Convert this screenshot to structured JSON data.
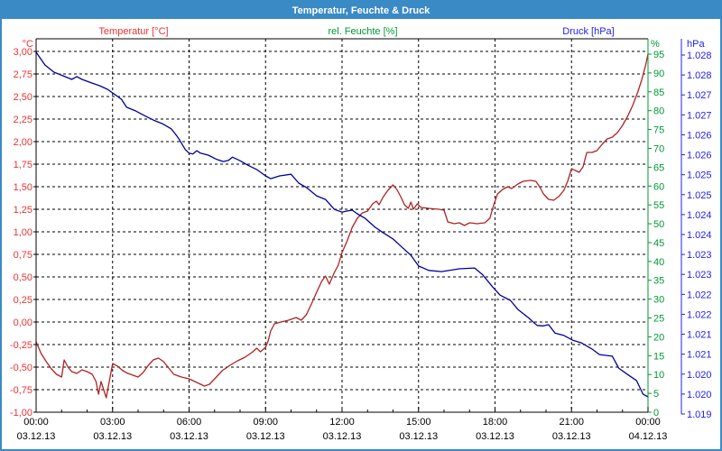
{
  "window": {
    "title": "Temperatur, Feuchte & Druck"
  },
  "colors": {
    "titlebar": "#3a8ac6",
    "frame": "#3a8ac6",
    "plot_background": "#ffffff",
    "grid": "#000000",
    "x_labels": "#000000",
    "temperature_label": "#ee3333",
    "temperature_curve": "#b22222",
    "humidity_label": "#009933",
    "humidity_axis": "#009933",
    "pressure_label": "#2222ee",
    "pressure_curve": "#000099"
  },
  "chart_data": {
    "type": "line",
    "title": "Temperatur, Feuchte & Druck",
    "grid": "dashed black, horizontal every 0.25 °C, vertical every 3 h",
    "legend_position": "axis titles above plot",
    "x_axis": {
      "range_hours": [
        0,
        24
      ],
      "major_step_hours": 3,
      "minor_step_hours": 1,
      "tick_times": [
        "00:00",
        "03:00",
        "06:00",
        "09:00",
        "12:00",
        "15:00",
        "18:00",
        "21:00",
        "00:00"
      ],
      "tick_dates": [
        "03.12.13",
        "03.12.13",
        "03.12.13",
        "03.12.13",
        "03.12.13",
        "03.12.13",
        "03.12.13",
        "03.12.13",
        "04.12.13"
      ]
    },
    "axes": {
      "temperature": {
        "label": "Temperatur [°C]",
        "unit": "°C",
        "side": "left",
        "min": -1.0,
        "max": 3.0,
        "step": 0.25,
        "tick_labels": [
          "3,00",
          "2,75",
          "2,50",
          "2,25",
          "2,00",
          "1,75",
          "1,50",
          "1,25",
          "1,00",
          "0,75",
          "0,50",
          "0,25",
          "0,00",
          "-0,25",
          "-0,50",
          "-0,75",
          "-1,00"
        ]
      },
      "humidity": {
        "label": "rel. Feuchte [%]",
        "unit": "%",
        "side": "right",
        "min": 0,
        "max": 95,
        "step": 5,
        "tick_labels": [
          "95",
          "90",
          "85",
          "80",
          "75",
          "70",
          "65",
          "60",
          "55",
          "50",
          "45",
          "40",
          "35",
          "30",
          "25",
          "20",
          "15",
          "10",
          "5",
          "0"
        ]
      },
      "pressure": {
        "label": "Druck [hPa]",
        "unit": "hPa",
        "side": "right-outer",
        "min": 1019.5,
        "max": 1028.5,
        "step": 0.5,
        "tick_labels": [
          "1.028",
          "1.028",
          "1.027",
          "1.027",
          "1.026",
          "1.026",
          "1.025",
          "1.025",
          "1.024",
          "1.024",
          "1.023",
          "1.023",
          "1.022",
          "1.022",
          "1.021",
          "1.021",
          "1.020",
          "1.020",
          "1.019"
        ]
      }
    },
    "series": [
      {
        "name": "Temperatur",
        "axis": "temperature",
        "color": "#b22222",
        "points": [
          [
            0,
            -0.22
          ],
          [
            0.2,
            -0.35
          ],
          [
            0.4,
            -0.44
          ],
          [
            0.6,
            -0.52
          ],
          [
            0.8,
            -0.58
          ],
          [
            1.0,
            -0.61
          ],
          [
            1.1,
            -0.42
          ],
          [
            1.25,
            -0.5
          ],
          [
            1.4,
            -0.55
          ],
          [
            1.6,
            -0.57
          ],
          [
            1.8,
            -0.53
          ],
          [
            2.0,
            -0.55
          ],
          [
            2.2,
            -0.58
          ],
          [
            2.35,
            -0.66
          ],
          [
            2.45,
            -0.8
          ],
          [
            2.55,
            -0.66
          ],
          [
            2.75,
            -0.84
          ],
          [
            3.0,
            -0.46
          ],
          [
            3.2,
            -0.49
          ],
          [
            3.4,
            -0.54
          ],
          [
            3.6,
            -0.57
          ],
          [
            3.8,
            -0.59
          ],
          [
            4.0,
            -0.61
          ],
          [
            4.2,
            -0.56
          ],
          [
            4.4,
            -0.48
          ],
          [
            4.6,
            -0.42
          ],
          [
            4.8,
            -0.4
          ],
          [
            5.0,
            -0.44
          ],
          [
            5.2,
            -0.51
          ],
          [
            5.4,
            -0.58
          ],
          [
            5.7,
            -0.61
          ],
          [
            6.0,
            -0.63
          ],
          [
            6.3,
            -0.67
          ],
          [
            6.6,
            -0.71
          ],
          [
            6.8,
            -0.69
          ],
          [
            7.0,
            -0.63
          ],
          [
            7.3,
            -0.54
          ],
          [
            7.6,
            -0.48
          ],
          [
            7.9,
            -0.43
          ],
          [
            8.2,
            -0.39
          ],
          [
            8.5,
            -0.33
          ],
          [
            8.65,
            -0.29
          ],
          [
            8.8,
            -0.33
          ],
          [
            9.0,
            -0.28
          ],
          [
            9.1,
            -0.21
          ],
          [
            9.2,
            -0.1
          ],
          [
            9.35,
            -0.02
          ],
          [
            9.6,
            0.0
          ],
          [
            9.9,
            0.02
          ],
          [
            10.2,
            0.05
          ],
          [
            10.4,
            0.02
          ],
          [
            10.6,
            0.08
          ],
          [
            10.8,
            0.2
          ],
          [
            11.0,
            0.33
          ],
          [
            11.2,
            0.45
          ],
          [
            11.35,
            0.51
          ],
          [
            11.5,
            0.42
          ],
          [
            11.7,
            0.55
          ],
          [
            11.85,
            0.63
          ],
          [
            12.0,
            0.77
          ],
          [
            12.2,
            0.9
          ],
          [
            12.4,
            1.05
          ],
          [
            12.6,
            1.15
          ],
          [
            12.8,
            1.21
          ],
          [
            13.0,
            1.23
          ],
          [
            13.2,
            1.31
          ],
          [
            13.35,
            1.34
          ],
          [
            13.45,
            1.3
          ],
          [
            13.6,
            1.38
          ],
          [
            13.8,
            1.46
          ],
          [
            14.0,
            1.52
          ],
          [
            14.15,
            1.47
          ],
          [
            14.3,
            1.39
          ],
          [
            14.45,
            1.3
          ],
          [
            14.6,
            1.26
          ],
          [
            14.7,
            1.33
          ],
          [
            14.8,
            1.25
          ],
          [
            14.95,
            1.31
          ],
          [
            15.1,
            1.27
          ],
          [
            15.4,
            1.26
          ],
          [
            15.8,
            1.25
          ],
          [
            16.0,
            1.24
          ],
          [
            16.15,
            1.11
          ],
          [
            16.4,
            1.09
          ],
          [
            16.6,
            1.1
          ],
          [
            16.8,
            1.07
          ],
          [
            17.0,
            1.1
          ],
          [
            17.3,
            1.09
          ],
          [
            17.6,
            1.1
          ],
          [
            17.8,
            1.15
          ],
          [
            17.95,
            1.3
          ],
          [
            18.1,
            1.42
          ],
          [
            18.3,
            1.47
          ],
          [
            18.5,
            1.5
          ],
          [
            18.65,
            1.48
          ],
          [
            18.9,
            1.53
          ],
          [
            19.1,
            1.56
          ],
          [
            19.4,
            1.57
          ],
          [
            19.6,
            1.56
          ],
          [
            19.75,
            1.5
          ],
          [
            19.9,
            1.42
          ],
          [
            20.1,
            1.36
          ],
          [
            20.3,
            1.35
          ],
          [
            20.5,
            1.39
          ],
          [
            20.7,
            1.46
          ],
          [
            20.85,
            1.56
          ],
          [
            21.0,
            1.7
          ],
          [
            21.15,
            1.68
          ],
          [
            21.3,
            1.66
          ],
          [
            21.45,
            1.72
          ],
          [
            21.6,
            1.88
          ],
          [
            21.8,
            1.88
          ],
          [
            22.0,
            1.9
          ],
          [
            22.2,
            1.97
          ],
          [
            22.4,
            2.03
          ],
          [
            22.6,
            2.05
          ],
          [
            22.8,
            2.1
          ],
          [
            23.0,
            2.18
          ],
          [
            23.2,
            2.28
          ],
          [
            23.4,
            2.4
          ],
          [
            23.6,
            2.55
          ],
          [
            23.75,
            2.68
          ],
          [
            23.9,
            2.84
          ],
          [
            24.0,
            2.97
          ]
        ]
      },
      {
        "name": "rel. Feuchte",
        "axis": "humidity",
        "color": "#009933",
        "points": []
      },
      {
        "name": "Druck",
        "axis": "pressure",
        "color": "#000099",
        "points": [
          [
            0,
            1028.57
          ],
          [
            0.35,
            1028.25
          ],
          [
            0.7,
            1028.07
          ],
          [
            1.05,
            1027.98
          ],
          [
            1.4,
            1027.89
          ],
          [
            1.6,
            1027.96
          ],
          [
            1.8,
            1027.89
          ],
          [
            2.1,
            1027.82
          ],
          [
            2.5,
            1027.73
          ],
          [
            2.8,
            1027.64
          ],
          [
            3.2,
            1027.46
          ],
          [
            3.35,
            1027.39
          ],
          [
            3.55,
            1027.19
          ],
          [
            3.9,
            1027.1
          ],
          [
            4.25,
            1026.98
          ],
          [
            4.6,
            1026.87
          ],
          [
            4.95,
            1026.78
          ],
          [
            5.3,
            1026.65
          ],
          [
            5.45,
            1026.53
          ],
          [
            5.6,
            1026.4
          ],
          [
            5.85,
            1026.13
          ],
          [
            6.0,
            1026.04
          ],
          [
            6.15,
            1026.02
          ],
          [
            6.3,
            1026.1
          ],
          [
            6.45,
            1026.04
          ],
          [
            6.75,
            1025.99
          ],
          [
            7.1,
            1025.88
          ],
          [
            7.35,
            1025.83
          ],
          [
            7.55,
            1025.86
          ],
          [
            7.7,
            1025.94
          ],
          [
            8.0,
            1025.85
          ],
          [
            8.3,
            1025.74
          ],
          [
            8.65,
            1025.63
          ],
          [
            9.0,
            1025.47
          ],
          [
            9.2,
            1025.4
          ],
          [
            9.55,
            1025.47
          ],
          [
            10.0,
            1025.51
          ],
          [
            10.3,
            1025.29
          ],
          [
            10.6,
            1025.18
          ],
          [
            11.0,
            1024.97
          ],
          [
            11.35,
            1024.88
          ],
          [
            11.7,
            1024.63
          ],
          [
            12.0,
            1024.56
          ],
          [
            12.2,
            1024.59
          ],
          [
            12.4,
            1024.61
          ],
          [
            12.6,
            1024.52
          ],
          [
            12.9,
            1024.41
          ],
          [
            13.3,
            1024.18
          ],
          [
            13.6,
            1024.05
          ],
          [
            14.0,
            1023.89
          ],
          [
            14.3,
            1023.71
          ],
          [
            14.7,
            1023.48
          ],
          [
            15.0,
            1023.21
          ],
          [
            15.4,
            1023.1
          ],
          [
            15.9,
            1023.07
          ],
          [
            16.6,
            1023.14
          ],
          [
            17.2,
            1023.16
          ],
          [
            17.5,
            1023.0
          ],
          [
            17.9,
            1022.69
          ],
          [
            18.2,
            1022.48
          ],
          [
            18.6,
            1022.35
          ],
          [
            18.9,
            1022.12
          ],
          [
            19.3,
            1021.92
          ],
          [
            19.65,
            1021.72
          ],
          [
            19.9,
            1021.71
          ],
          [
            20.1,
            1021.74
          ],
          [
            20.35,
            1021.53
          ],
          [
            20.7,
            1021.47
          ],
          [
            21.05,
            1021.35
          ],
          [
            21.4,
            1021.28
          ],
          [
            21.8,
            1021.13
          ],
          [
            22.1,
            1020.99
          ],
          [
            22.6,
            1020.95
          ],
          [
            22.85,
            1020.65
          ],
          [
            23.2,
            1020.49
          ],
          [
            23.55,
            1020.34
          ],
          [
            23.8,
            1020.0
          ],
          [
            24.0,
            1019.93
          ]
        ]
      }
    ]
  }
}
